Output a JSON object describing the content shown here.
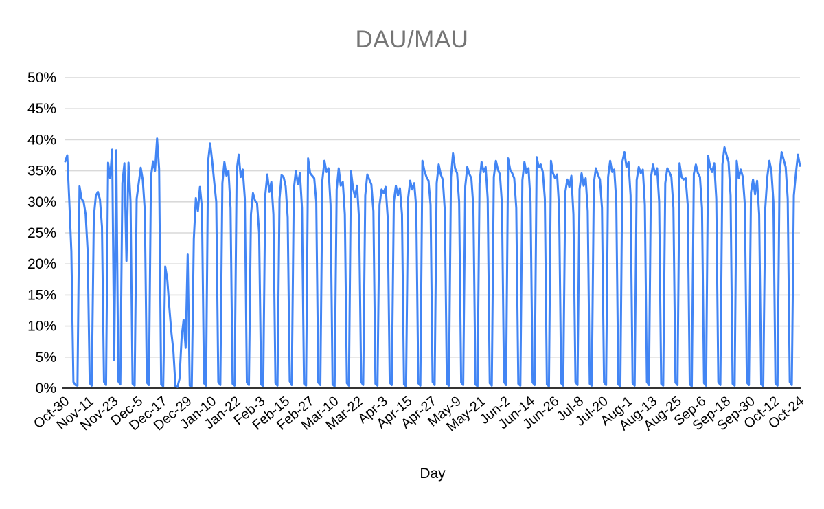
{
  "chart": {
    "title": "DAU/MAU",
    "x_axis_title": "Day",
    "colors": {
      "line": "#4285f4",
      "gridline": "#d9d9d9",
      "axis_baseline": "#333333",
      "title_text": "#757575",
      "tick_text": "#000000",
      "background": "#ffffff"
    }
  },
  "chart_data": {
    "type": "line",
    "title": "DAU/MAU",
    "xlabel": "Day",
    "ylabel": "",
    "ylim_percent": [
      0,
      50
    ],
    "grid": true,
    "legend": "none",
    "y_tick_labels": [
      "0%",
      "5%",
      "10%",
      "15%",
      "20%",
      "25%",
      "30%",
      "35%",
      "40%",
      "45%",
      "50%"
    ],
    "x_tick_labels": [
      "Oct-30",
      "Nov-11",
      "Nov-23",
      "Dec-5",
      "Dec-17",
      "Dec-29",
      "Jan-10",
      "Jan-22",
      "Feb-3",
      "Feb-15",
      "Feb-27",
      "Mar-10",
      "Mar-22",
      "Apr-3",
      "Apr-15",
      "Apr-27",
      "May-9",
      "May-21",
      "Jun-2",
      "Jun-14",
      "Jun-26",
      "Jul-8",
      "Jul-20",
      "Aug-1",
      "Aug-13",
      "Aug-25",
      "Sep-6",
      "Sep-18",
      "Sep-30",
      "Oct-12",
      "Oct-24"
    ],
    "x_tick_interval_days": 12,
    "series": [
      {
        "name": "DAU/MAU",
        "color": "#4285f4",
        "unit": "%",
        "values_percent": [
          36.5,
          37.5,
          30.0,
          22.0,
          1.0,
          0.5,
          0.4,
          32.5,
          30.5,
          30.0,
          28.0,
          22.0,
          0.8,
          0.4,
          27.5,
          31.0,
          31.6,
          30.4,
          26.0,
          1.0,
          0.5,
          36.3,
          33.8,
          38.4,
          4.5,
          38.3,
          1.1,
          0.6,
          33.0,
          36.2,
          20.5,
          36.3,
          30.0,
          0.7,
          0.4,
          30.5,
          33.0,
          35.5,
          33.5,
          28.5,
          0.9,
          0.5,
          34.0,
          36.5,
          35.0,
          40.2,
          35.3,
          0.6,
          0.3,
          19.6,
          17.5,
          13.0,
          9.0,
          6.0,
          0.3,
          0.2,
          1.5,
          8.0,
          11.0,
          6.5,
          21.5,
          0.4,
          0.3,
          24.0,
          30.6,
          28.5,
          32.4,
          29.0,
          0.8,
          0.4,
          36.5,
          39.4,
          36.6,
          33.2,
          30.0,
          1.0,
          0.5,
          33.0,
          36.4,
          34.2,
          35.0,
          29.0,
          0.7,
          0.4,
          35.0,
          37.6,
          34.0,
          35.2,
          30.5,
          0.9,
          0.5,
          28.0,
          31.4,
          30.2,
          29.8,
          25.0,
          0.6,
          0.3,
          31.0,
          34.4,
          31.6,
          33.2,
          28.0,
          0.8,
          0.4,
          30.5,
          34.3,
          34.0,
          32.5,
          27.5,
          1.1,
          0.5,
          32.0,
          35.0,
          32.8,
          34.6,
          29.0,
          0.7,
          0.4,
          37.0,
          34.6,
          34.2,
          33.8,
          30.0,
          0.9,
          0.5,
          33.5,
          36.6,
          34.8,
          35.4,
          29.5,
          0.6,
          0.3,
          32.0,
          35.4,
          32.6,
          33.2,
          28.0,
          0.8,
          0.4,
          35.0,
          32.2,
          30.8,
          32.6,
          27.0,
          1.0,
          0.5,
          31.0,
          34.4,
          33.6,
          32.8,
          28.5,
          0.7,
          0.4,
          29.5,
          32.0,
          31.4,
          32.4,
          27.5,
          0.9,
          0.5,
          30.0,
          32.6,
          31.0,
          32.2,
          28.0,
          0.6,
          0.3,
          30.5,
          33.4,
          32.0,
          33.0,
          29.0,
          0.8,
          0.4,
          36.6,
          35.0,
          34.0,
          33.4,
          29.5,
          1.0,
          0.5,
          33.0,
          36.0,
          34.4,
          33.6,
          28.5,
          0.7,
          0.4,
          34.0,
          37.8,
          35.4,
          34.6,
          30.0,
          0.9,
          0.5,
          32.5,
          35.6,
          34.5,
          33.8,
          29.0,
          0.6,
          0.3,
          33.0,
          36.4,
          34.8,
          35.6,
          30.5,
          0.8,
          0.4,
          34.0,
          36.6,
          35.2,
          34.4,
          29.5,
          1.0,
          0.5,
          37.0,
          35.2,
          34.6,
          33.8,
          29.0,
          0.7,
          0.4,
          33.5,
          36.4,
          34.6,
          35.4,
          30.0,
          0.9,
          0.5,
          37.2,
          35.6,
          36.0,
          34.8,
          30.5,
          0.6,
          0.3,
          36.6,
          34.6,
          33.8,
          34.4,
          29.0,
          0.8,
          0.4,
          31.5,
          33.6,
          32.4,
          34.2,
          28.0,
          1.0,
          0.5,
          32.0,
          34.6,
          32.6,
          33.8,
          28.5,
          0.7,
          0.4,
          33.0,
          35.4,
          34.4,
          33.6,
          29.0,
          0.9,
          0.5,
          34.0,
          36.6,
          34.8,
          35.2,
          30.0,
          0.6,
          0.3,
          36.5,
          38.0,
          35.6,
          36.4,
          31.0,
          0.8,
          0.4,
          33.5,
          35.6,
          34.6,
          35.2,
          29.5,
          1.0,
          0.5,
          34.0,
          36.0,
          34.4,
          35.4,
          30.0,
          0.7,
          0.4,
          33.0,
          35.4,
          34.8,
          34.0,
          29.0,
          0.9,
          0.5,
          36.2,
          34.0,
          33.6,
          33.8,
          29.5,
          0.6,
          0.3,
          34.5,
          36.0,
          34.6,
          34.0,
          29.0,
          0.8,
          0.4,
          37.4,
          35.6,
          34.8,
          36.2,
          30.5,
          1.0,
          0.5,
          36.0,
          38.8,
          37.6,
          36.4,
          31.0,
          0.7,
          0.4,
          36.6,
          33.8,
          35.2,
          34.0,
          29.5,
          0.9,
          0.5,
          31.5,
          33.6,
          31.2,
          33.4,
          28.0,
          0.6,
          0.3,
          29.0,
          34.0,
          36.6,
          35.0,
          30.0,
          0.8,
          0.4,
          34.5,
          38.0,
          36.8,
          35.6,
          30.5,
          1.0,
          0.5,
          31.0,
          34.6,
          37.6,
          35.8
        ]
      }
    ]
  }
}
